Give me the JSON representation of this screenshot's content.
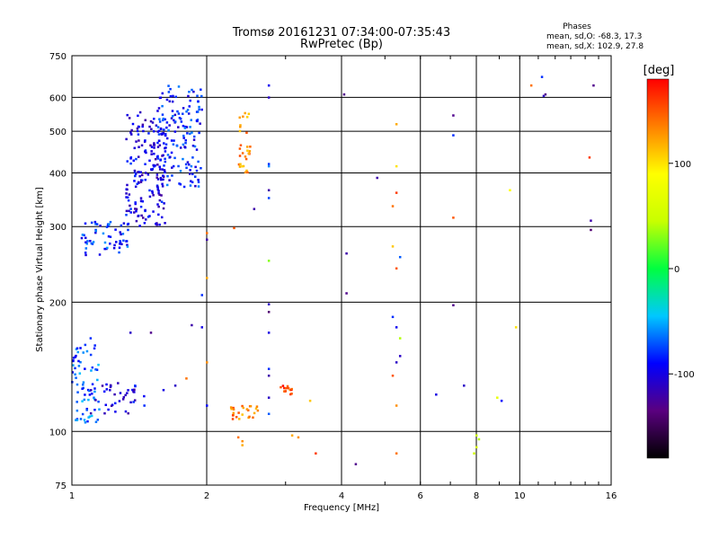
{
  "chart_data": {
    "type": "scatter",
    "title": "Tromsø 20161231 07:34:00-07:35:43",
    "subtitle": "RwPretec (Bp)",
    "xlabel": "Frequency [MHz]",
    "ylabel": "Stationary phase Virtual Height [km]",
    "x_scale": "log",
    "y_scale": "log",
    "xlim": [
      1,
      16
    ],
    "ylim": [
      75,
      750
    ],
    "x_ticks": [
      1,
      2,
      4,
      6,
      8,
      10,
      16
    ],
    "x_tick_labels": [
      "1",
      "2",
      "4",
      "6",
      "8",
      "10",
      "16"
    ],
    "y_ticks": [
      75,
      100,
      200,
      300,
      400,
      500,
      600,
      750
    ],
    "y_tick_labels": [
      "75",
      "100",
      "200",
      "300",
      "400",
      "500",
      "600",
      "750"
    ],
    "grid": true,
    "stats_title": "Phases",
    "stats_lines": [
      "mean, sd,O: -68.3, 17.3",
      "mean, sd,X: 102.9, 27.8"
    ],
    "colorbar": {
      "label": "[deg]",
      "range": [
        -180,
        180
      ],
      "ticks": [
        100,
        0,
        -100
      ],
      "tick_labels": [
        "100",
        "0",
        "-100"
      ],
      "colormap": [
        "#000000",
        "#5a007f",
        "#0000ff",
        "#00c8ff",
        "#00ff40",
        "#c8ff00",
        "#ffff00",
        "#ff8000",
        "#ff0000"
      ]
    },
    "clusters": [
      {
        "name": "",
        "x_range": [
          1.32,
          1.62
        ],
        "y_range": [
          300,
          560
        ],
        "phase": -100,
        "count": 180
      },
      {
        "name": "",
        "x_range": [
          1.55,
          1.95
        ],
        "y_range": [
          370,
          640
        ],
        "phase": -85,
        "count": 150
      },
      {
        "name": "",
        "x_range": [
          1.05,
          1.35
        ],
        "y_range": [
          255,
          310
        ],
        "phase": -80,
        "count": 60
      },
      {
        "name": "",
        "x_range": [
          1.0,
          1.15
        ],
        "y_range": [
          105,
          160
        ],
        "phase": -70,
        "count": 70
      },
      {
        "name": "",
        "x_range": [
          1.1,
          1.45
        ],
        "y_range": [
          110,
          130
        ],
        "phase": -105,
        "count": 40
      },
      {
        "name": "",
        "x_range": [
          2.35,
          2.5
        ],
        "y_range": [
          400,
          560
        ],
        "phase": 130,
        "count": 30
      },
      {
        "name": "",
        "x_range": [
          2.25,
          2.6
        ],
        "y_range": [
          107,
          115
        ],
        "phase": 135,
        "count": 25
      },
      {
        "name": "",
        "x_range": [
          2.9,
          3.1
        ],
        "y_range": [
          122,
          128
        ],
        "phase": 160,
        "count": 15
      }
    ],
    "points": [
      [
        2.75,
        640,
        -95
      ],
      [
        2.75,
        600,
        -110
      ],
      [
        4.05,
        610,
        -130
      ],
      [
        5.3,
        520,
        120
      ],
      [
        7.1,
        545,
        -130
      ],
      [
        7.1,
        490,
        -80
      ],
      [
        5.3,
        415,
        100
      ],
      [
        5.3,
        360,
        160
      ],
      [
        4.8,
        390,
        -120
      ],
      [
        5.2,
        335,
        140
      ],
      [
        5.2,
        270,
        110
      ],
      [
        5.3,
        240,
        150
      ],
      [
        5.4,
        255,
        -70
      ],
      [
        4.1,
        260,
        -120
      ],
      [
        4.1,
        210,
        -130
      ],
      [
        5.2,
        185,
        -80
      ],
      [
        5.3,
        175,
        -95
      ],
      [
        5.4,
        165,
        40
      ],
      [
        5.4,
        150,
        -110
      ],
      [
        7.1,
        197,
        -130
      ],
      [
        7.1,
        315,
        150
      ],
      [
        9.5,
        365,
        90
      ],
      [
        10.6,
        640,
        140
      ],
      [
        11.2,
        670,
        -80
      ],
      [
        11.3,
        605,
        -110
      ],
      [
        11.4,
        610,
        -130
      ],
      [
        14.6,
        640,
        -130
      ],
      [
        14.3,
        435,
        160
      ],
      [
        14.4,
        310,
        -120
      ],
      [
        14.4,
        295,
        -140
      ],
      [
        9.8,
        175,
        100
      ],
      [
        2.75,
        420,
        -80
      ],
      [
        2.75,
        415,
        -60
      ],
      [
        2.75,
        365,
        -120
      ],
      [
        2.75,
        350,
        -75
      ],
      [
        2.55,
        330,
        -120
      ],
      [
        2.75,
        250,
        30
      ],
      [
        2.75,
        198,
        -110
      ],
      [
        2.75,
        190,
        -140
      ],
      [
        2.75,
        170,
        -100
      ],
      [
        2.75,
        140,
        -80
      ],
      [
        2.75,
        135,
        -120
      ],
      [
        2.75,
        120,
        -110
      ],
      [
        2.75,
        110,
        -70
      ],
      [
        2.3,
        298,
        150
      ],
      [
        2.0,
        280,
        -120
      ],
      [
        2.0,
        290,
        140
      ],
      [
        2.0,
        228,
        120
      ],
      [
        1.95,
        208,
        -80
      ],
      [
        1.95,
        175,
        -100
      ],
      [
        1.85,
        177,
        -120
      ],
      [
        2.0,
        145,
        130
      ],
      [
        1.8,
        133,
        140
      ],
      [
        1.7,
        128,
        -110
      ],
      [
        2.0,
        115,
        -90
      ],
      [
        2.35,
        97,
        140
      ],
      [
        2.4,
        95,
        130
      ],
      [
        2.4,
        93,
        120
      ],
      [
        3.5,
        89,
        160
      ],
      [
        4.3,
        84,
        -130
      ],
      [
        5.3,
        89,
        140
      ],
      [
        5.3,
        115,
        130
      ],
      [
        5.2,
        135,
        150
      ],
      [
        5.3,
        145,
        -110
      ],
      [
        8.0,
        98,
        50
      ],
      [
        8.1,
        96,
        40
      ],
      [
        8.0,
        92,
        60
      ],
      [
        7.9,
        89,
        50
      ],
      [
        8.9,
        120,
        70
      ],
      [
        9.1,
        118,
        -90
      ],
      [
        7.5,
        128,
        -110
      ],
      [
        6.5,
        122,
        -100
      ],
      [
        3.1,
        98,
        120
      ],
      [
        3.2,
        97,
        130
      ],
      [
        3.4,
        118,
        110
      ],
      [
        1.5,
        170,
        -130
      ],
      [
        1.35,
        170,
        -110
      ],
      [
        1.1,
        165,
        -80
      ],
      [
        1.6,
        125,
        -100
      ],
      [
        1.45,
        115,
        -80
      ]
    ]
  }
}
